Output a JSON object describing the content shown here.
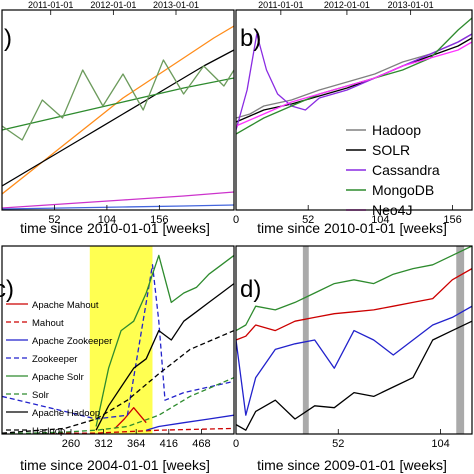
{
  "chart_data": [
    {
      "type": "line",
      "panel_label": ")",
      "xlabel": "time since 2010-01-01  [weeks]",
      "top_ticks": [
        "2011-01-01",
        "2012-01-01",
        "2013-01-01"
      ],
      "x_ticks": [
        "52",
        "104",
        "156"
      ],
      "xlim": [
        0,
        230
      ],
      "ylim": [
        0,
        100
      ],
      "series": [
        {
          "color": "#ff8c1a",
          "x": [
            0,
            30,
            60,
            90,
            120,
            150,
            180,
            210,
            230
          ],
          "y": [
            8,
            20,
            32,
            44,
            56,
            66,
            76,
            86,
            92
          ]
        },
        {
          "color": "#000000",
          "x": [
            0,
            40,
            80,
            120,
            160,
            200,
            230
          ],
          "y": [
            12,
            24,
            36,
            48,
            60,
            72,
            80
          ]
        },
        {
          "color": "#2e8b2e",
          "x": [
            0,
            60,
            120,
            180,
            230
          ],
          "y": [
            40,
            47,
            54,
            61,
            66
          ]
        },
        {
          "color": "#6c9b5c",
          "x": [
            0,
            20,
            40,
            60,
            80,
            100,
            120,
            140,
            160,
            180,
            200,
            220,
            230
          ],
          "y": [
            42,
            35,
            55,
            46,
            70,
            52,
            68,
            50,
            75,
            58,
            72,
            62,
            70
          ]
        },
        {
          "color": "#cc33cc",
          "x": [
            0,
            60,
            120,
            180,
            230
          ],
          "y": [
            1,
            3,
            5,
            7,
            9
          ]
        },
        {
          "color": "#4466dd",
          "x": [
            0,
            60,
            120,
            180,
            230
          ],
          "y": [
            0.5,
            1,
            1.5,
            2,
            2.5
          ]
        }
      ]
    },
    {
      "type": "line",
      "panel_label": "b)",
      "xlabel": "time since 2010-01-01  [weeks]",
      "top_ticks": [
        "2011-01-01",
        "2012-01-01",
        "2013-01-01"
      ],
      "x_ticks": [
        "0",
        "52",
        "104",
        "156"
      ],
      "xlim": [
        0,
        170
      ],
      "ylim": [
        0,
        100
      ],
      "legend_position": "bottom-right",
      "series": [
        {
          "name": "Hadoop",
          "color": "#808080",
          "x": [
            0,
            10,
            20,
            40,
            60,
            80,
            100,
            120,
            140,
            160,
            170
          ],
          "y": [
            46,
            48,
            52,
            55,
            60,
            64,
            68,
            74,
            78,
            84,
            88
          ]
        },
        {
          "name": "SOLR",
          "color": "#000000",
          "x": [
            0,
            10,
            20,
            40,
            60,
            80,
            100,
            120,
            140,
            160,
            170
          ],
          "y": [
            44,
            47,
            50,
            53,
            57,
            61,
            66,
            72,
            77,
            82,
            86
          ]
        },
        {
          "name": "Cassandra",
          "color": "#8a2be2",
          "x": [
            0,
            8,
            15,
            22,
            30,
            40,
            50,
            60,
            80,
            100,
            120,
            140,
            160,
            170
          ],
          "y": [
            40,
            60,
            88,
            70,
            58,
            52,
            50,
            56,
            60,
            66,
            72,
            78,
            84,
            88
          ]
        },
        {
          "name": "MongoDB",
          "color": "#2e8b2e",
          "x": [
            0,
            10,
            20,
            40,
            60,
            80,
            100,
            120,
            140,
            160,
            170
          ],
          "y": [
            38,
            42,
            46,
            52,
            58,
            62,
            66,
            70,
            76,
            90,
            96
          ]
        },
        {
          "name": "Neo4J",
          "color": "#ff33ff",
          "x": [
            0,
            10,
            20,
            40,
            60,
            80,
            100,
            120,
            140,
            160,
            170
          ],
          "y": [
            42,
            45,
            48,
            54,
            58,
            62,
            66,
            72,
            76,
            80,
            84
          ]
        }
      ]
    },
    {
      "type": "line",
      "panel_label": "c)",
      "xlabel": "time since 2004-01-01  [weeks]",
      "x_ticks": [
        "260",
        "312",
        "364",
        "416",
        "468"
      ],
      "x_tick_values": [
        260,
        312,
        364,
        416,
        468
      ],
      "xlim": [
        150,
        520
      ],
      "ylim": [
        0,
        100
      ],
      "highlight": [
        290,
        390
      ],
      "series": [
        {
          "name": "Apache Mahout",
          "color": "#cc0000",
          "dash": false,
          "x": [
            330,
            345,
            360,
            380
          ],
          "y": [
            3,
            8,
            14,
            6
          ]
        },
        {
          "name": "Mahout",
          "color": "#cc0000",
          "dash": true,
          "x": [
            150,
            300,
            400,
            520
          ],
          "y": [
            0.5,
            0.5,
            2,
            3
          ]
        },
        {
          "name": "Apache Zookeeper",
          "color": "#2222cc",
          "dash": false,
          "x": [
            380,
            400,
            440,
            480,
            520
          ],
          "y": [
            2,
            4,
            6,
            8,
            10
          ]
        },
        {
          "name": "Zookeeper",
          "color": "#2222cc",
          "dash": true,
          "x": [
            150,
            200,
            250,
            300,
            350,
            390,
            400,
            410,
            440,
            480,
            520
          ],
          "y": [
            20,
            16,
            12,
            8,
            10,
            90,
            60,
            18,
            22,
            25,
            28
          ]
        },
        {
          "name": "Apache Solr",
          "color": "#2e8b2e",
          "dash": false,
          "x": [
            300,
            320,
            340,
            360,
            380,
            400,
            420,
            440,
            460,
            480,
            500,
            520
          ],
          "y": [
            4,
            35,
            55,
            60,
            75,
            95,
            70,
            75,
            78,
            85,
            90,
            95
          ]
        },
        {
          "name": "Solr",
          "color": "#2e8b2e",
          "dash": true,
          "x": [
            150,
            200,
            250,
            300,
            350,
            400,
            450,
            520
          ],
          "y": [
            0.5,
            0.5,
            1,
            2,
            4,
            10,
            20,
            30
          ]
        },
        {
          "name": "Apache Hadoop",
          "color": "#000000",
          "dash": false,
          "x": [
            300,
            320,
            340,
            360,
            380,
            400,
            420,
            440,
            460,
            480,
            500,
            520
          ],
          "y": [
            2,
            15,
            25,
            35,
            40,
            55,
            50,
            60,
            65,
            70,
            75,
            80
          ]
        },
        {
          "name": "Hadoop",
          "color": "#000000",
          "dash": true,
          "x": [
            150,
            250,
            300,
            350,
            400,
            450,
            520
          ],
          "y": [
            0.5,
            3,
            8,
            18,
            32,
            45,
            55
          ]
        }
      ]
    },
    {
      "type": "line",
      "panel_label": "d)",
      "xlabel": "time since 2009-01-01  [weeks]",
      "x_ticks": [
        "0",
        "52",
        "104"
      ],
      "xlim": [
        0,
        120
      ],
      "ylim": [
        0,
        100
      ],
      "gray_bands": [
        [
          34,
          37
        ],
        [
          112,
          116
        ]
      ],
      "series": [
        {
          "color": "#2e8b2e",
          "x": [
            0,
            5,
            10,
            20,
            30,
            40,
            50,
            60,
            70,
            80,
            90,
            100,
            110,
            120
          ],
          "y": [
            55,
            58,
            68,
            66,
            70,
            75,
            80,
            82,
            80,
            85,
            88,
            90,
            95,
            100
          ]
        },
        {
          "color": "#cc0000",
          "x": [
            0,
            5,
            10,
            20,
            30,
            40,
            50,
            60,
            70,
            80,
            90,
            100,
            110,
            120
          ],
          "y": [
            50,
            52,
            58,
            55,
            60,
            62,
            64,
            65,
            66,
            68,
            70,
            72,
            82,
            88
          ]
        },
        {
          "color": "#2222cc",
          "x": [
            0,
            5,
            10,
            20,
            30,
            40,
            50,
            60,
            70,
            80,
            90,
            100,
            110,
            120
          ],
          "y": [
            50,
            10,
            30,
            45,
            48,
            50,
            35,
            55,
            50,
            42,
            50,
            58,
            62,
            68
          ]
        },
        {
          "color": "#000000",
          "x": [
            0,
            5,
            10,
            20,
            30,
            40,
            50,
            60,
            70,
            80,
            90,
            100,
            110,
            120
          ],
          "y": [
            5,
            2,
            12,
            18,
            8,
            15,
            14,
            22,
            20,
            25,
            30,
            50,
            55,
            60
          ]
        }
      ]
    }
  ]
}
